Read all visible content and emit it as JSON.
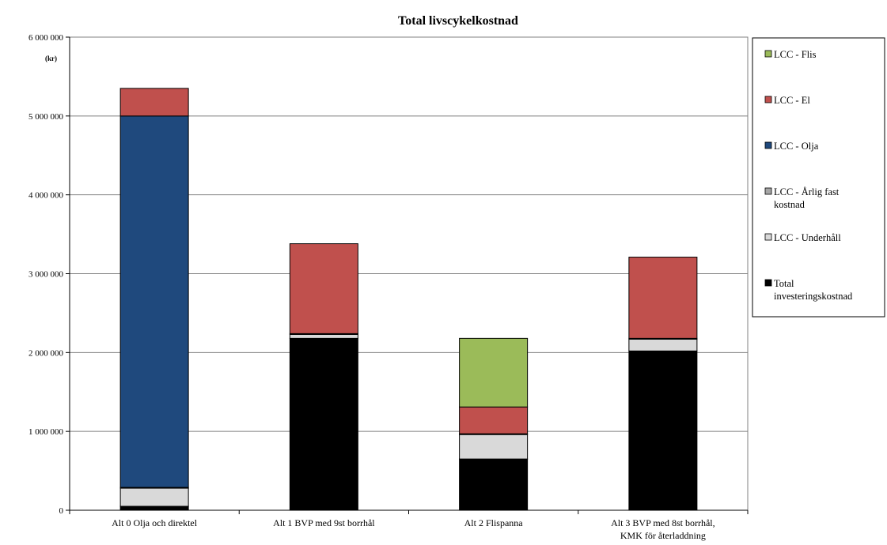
{
  "chart_data": {
    "type": "bar",
    "stacked": true,
    "title": "Total livscykelkostnad",
    "unit_label": "(kr)",
    "ylim": [
      0,
      6000000
    ],
    "yticks": [
      0,
      1000000,
      2000000,
      3000000,
      4000000,
      5000000,
      6000000
    ],
    "ytick_labels": [
      "0",
      "1 000 000",
      "2 000 000",
      "3 000 000",
      "4 000 000",
      "5 000 000",
      "6 000 000"
    ],
    "grid": true,
    "legend_position": "right",
    "categories": [
      [
        "Alt 0 Olja och direktel"
      ],
      [
        "Alt 1 BVP med 9st borrhål"
      ],
      [
        "Alt 2 Flispanna"
      ],
      [
        "Alt 3 BVP med 8st borrhål,",
        "KMK för återladdning"
      ]
    ],
    "series": [
      {
        "name": "Total investeringskostnad",
        "color": "#000000",
        "values": [
          50000,
          2180000,
          650000,
          2020000
        ]
      },
      {
        "name": "LCC - Underhåll",
        "color": "#d9d9d9",
        "values": [
          230000,
          50000,
          310000,
          150000
        ]
      },
      {
        "name": "LCC - Årlig fast kostnad",
        "color": "#a6a6a6",
        "values": [
          10000,
          10000,
          10000,
          10000
        ]
      },
      {
        "name": "LCC - Olja",
        "color": "#1f497d",
        "values": [
          4710000,
          0,
          0,
          0
        ]
      },
      {
        "name": "LCC - El",
        "color": "#c0504d",
        "values": [
          350000,
          1140000,
          340000,
          1030000
        ]
      },
      {
        "name": "LCC - Flis",
        "color": "#9bbb59",
        "values": [
          0,
          0,
          870000,
          0
        ]
      }
    ],
    "legend_order": [
      [
        "LCC - Flis"
      ],
      [
        "LCC - El"
      ],
      [
        "LCC - Olja"
      ],
      [
        "LCC - Årlig fast",
        "kostnad"
      ],
      [
        "LCC - Underhåll"
      ],
      [
        "Total",
        "investeringskostnad"
      ]
    ]
  }
}
